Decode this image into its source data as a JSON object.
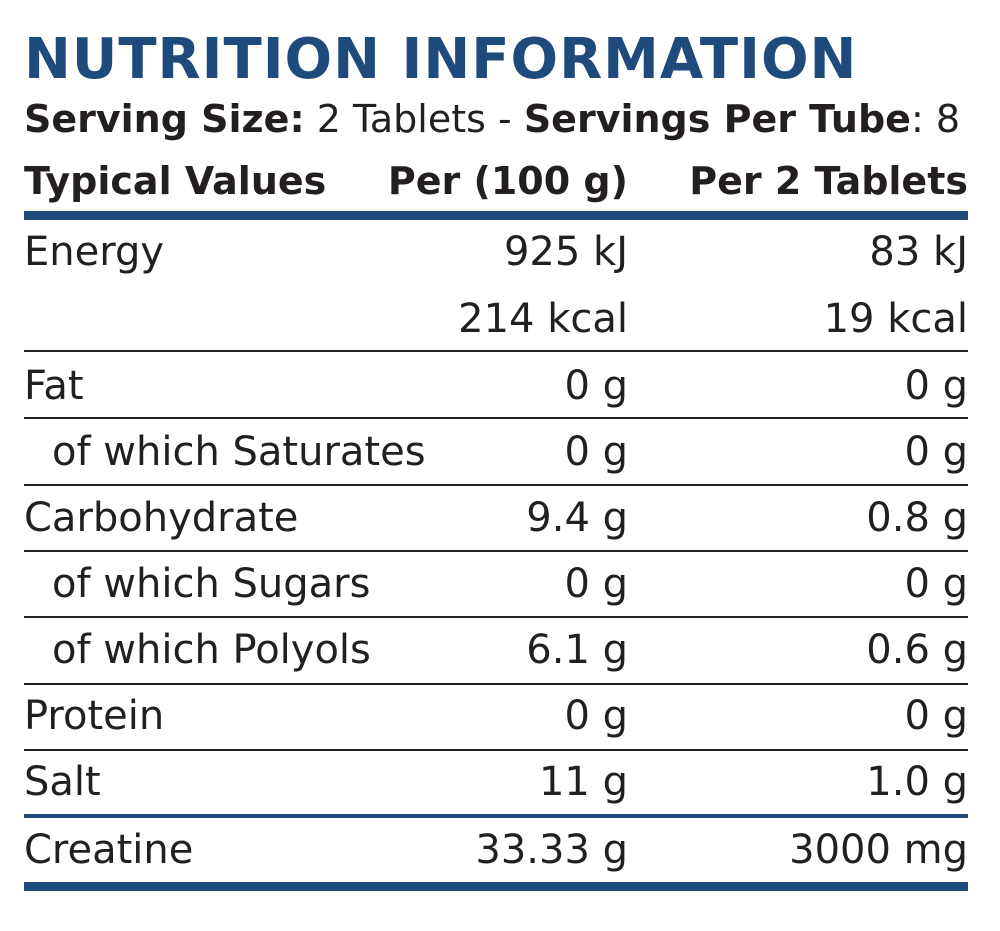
{
  "colors": {
    "accent": "#1f4a7c",
    "text": "#231f20",
    "rule": "#231f20"
  },
  "title": "NUTRITION INFORMATION",
  "serving": {
    "size_label": "Serving Size:",
    "size_value": " 2 Tablets - ",
    "per_label": "Servings Per Tube",
    "per_value": ": 8"
  },
  "header": {
    "col1": "Typical Values",
    "col2": "Per (100 g)",
    "col3": "Per 2 Tablets"
  },
  "rows": [
    {
      "name": "Energy",
      "per100": "925 kJ",
      "perServing": "83 kJ"
    },
    {
      "name": "",
      "per100": "214 kcal",
      "perServing": "19 kcal"
    },
    {
      "name": "Fat",
      "per100": "0 g",
      "perServing": "0 g"
    },
    {
      "name": "of which Saturates",
      "per100": "0 g",
      "perServing": "0 g"
    },
    {
      "name": "Carbohydrate",
      "per100": "9.4 g",
      "perServing": "0.8 g"
    },
    {
      "name": "of which Sugars",
      "per100": "0 g",
      "perServing": "0 g"
    },
    {
      "name": "of which Polyols",
      "per100": "6.1 g",
      "perServing": "0.6 g"
    },
    {
      "name": "Protein",
      "per100": "0 g",
      "perServing": "0 g"
    },
    {
      "name": "Salt",
      "per100": "11 g",
      "perServing": "1.0 g"
    },
    {
      "name": "Creatine",
      "per100": "33.33 g",
      "perServing": "3000 mg"
    }
  ]
}
